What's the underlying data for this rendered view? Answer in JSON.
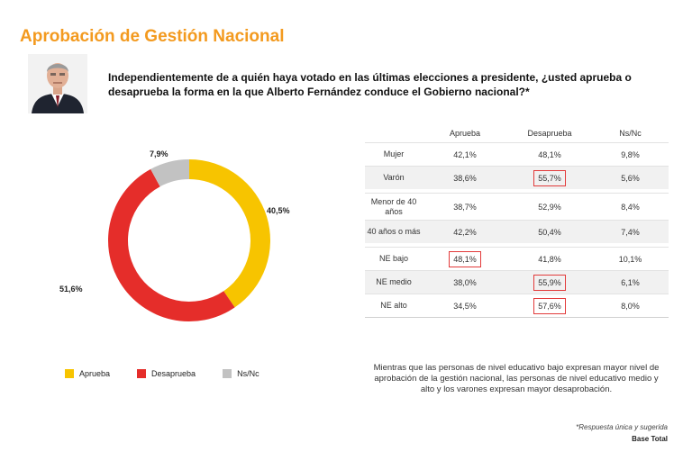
{
  "title": "Aprobación de Gestión Nacional",
  "question": "Independientemente de a quién haya votado en las últimas elecciones a presidente, ¿usted aprueba o desaprueba la forma en la que Alberto Fernández conduce el Gobierno nacional?*",
  "colors": {
    "title": "#f39a1f",
    "aprueba": "#f7c400",
    "desaprueba": "#e52d2a",
    "nsnc": "#c2c2c2",
    "highlight": "#e23a3a"
  },
  "chart_data": {
    "type": "pie",
    "title": "Aprobación de Gestión Nacional",
    "categories": [
      "Aprueba",
      "Desaprueba",
      "Ns/Nc"
    ],
    "values": [
      40.5,
      51.6,
      7.9
    ],
    "labels": [
      "40,5%",
      "51,6%",
      "7,9%"
    ],
    "legend": "bottom"
  },
  "legend": [
    {
      "label": "Aprueba"
    },
    {
      "label": "Desaprueba"
    },
    {
      "label": "Ns/Nc"
    }
  ],
  "table": {
    "headers": [
      "",
      "Aprueba",
      "Desaprueba",
      "Ns/Nc"
    ],
    "groups": [
      [
        {
          "label": "Mujer",
          "aprueba": "42,1%",
          "desaprueba": "48,1%",
          "nsnc": "9,8%",
          "hl": ""
        },
        {
          "label": "Varón",
          "aprueba": "38,6%",
          "desaprueba": "55,7%",
          "nsnc": "5,6%",
          "hl": "desaprueba"
        }
      ],
      [
        {
          "label": "Menor de 40 años",
          "aprueba": "38,7%",
          "desaprueba": "52,9%",
          "nsnc": "8,4%",
          "hl": ""
        },
        {
          "label": "40 años o más",
          "aprueba": "42,2%",
          "desaprueba": "50,4%",
          "nsnc": "7,4%",
          "hl": ""
        }
      ],
      [
        {
          "label": "NE bajo",
          "aprueba": "48,1%",
          "desaprueba": "41,8%",
          "nsnc": "10,1%",
          "hl": "aprueba"
        },
        {
          "label": "NE medio",
          "aprueba": "38,0%",
          "desaprueba": "55,9%",
          "nsnc": "6,1%",
          "hl": "desaprueba"
        },
        {
          "label": "NE alto",
          "aprueba": "34,5%",
          "desaprueba": "57,6%",
          "nsnc": "8,0%",
          "hl": "desaprueba"
        }
      ]
    ]
  },
  "note": "Mientras que las personas de nivel educativo bajo expresan mayor nivel de aprobación de la gestión nacional, las personas de nivel educativo medio y alto y los varones expresan mayor desaprobación.",
  "footnote": "*Respuesta única y sugerida",
  "base": "Base Total"
}
